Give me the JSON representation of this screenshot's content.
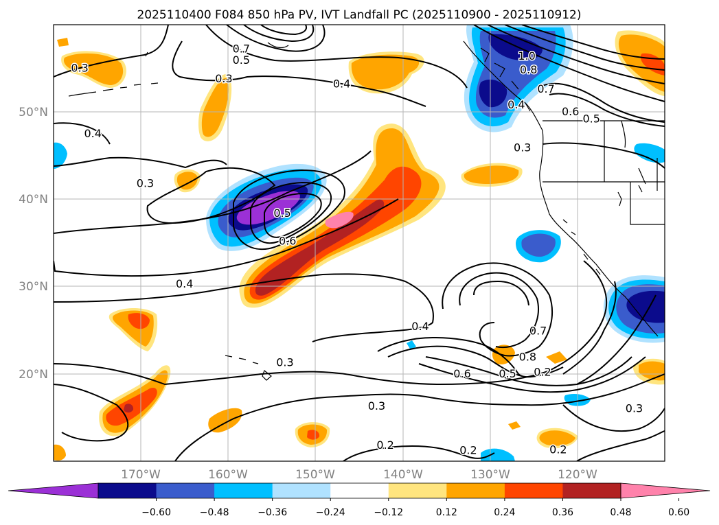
{
  "title": "2025110400 F084 850 hPa PV, IVT Landfall PC (2025110900 - 2025110912)",
  "map": {
    "lon_range": [
      -180,
      -110
    ],
    "lat_range": [
      10,
      60
    ],
    "lon_ticks": [
      -170,
      -160,
      -150,
      -140,
      -130,
      -120
    ],
    "lon_tick_labels": [
      "170°W",
      "160°W",
      "150°W",
      "140°W",
      "130°W",
      "120°W"
    ],
    "lat_ticks": [
      20,
      30,
      40,
      50
    ],
    "lat_tick_labels": [
      "20°N",
      "30°N",
      "40°N",
      "50°N"
    ],
    "gridlines": true,
    "contour_labels": [
      {
        "text": "0.7",
        "lon": -158.5,
        "lat": 57.2
      },
      {
        "text": "0.5",
        "lon": -158.5,
        "lat": 55.9
      },
      {
        "text": "0.3",
        "lon": -160.5,
        "lat": 53.8
      },
      {
        "text": "0.4",
        "lon": -147.0,
        "lat": 53.2
      },
      {
        "text": "0.3",
        "lon": -177.0,
        "lat": 55.0
      },
      {
        "text": "1.0",
        "lon": -125.8,
        "lat": 56.4
      },
      {
        "text": "0.8",
        "lon": -125.6,
        "lat": 54.8
      },
      {
        "text": "0.7",
        "lon": -123.6,
        "lat": 52.6
      },
      {
        "text": "0.4",
        "lon": -127.0,
        "lat": 50.8
      },
      {
        "text": "0.6",
        "lon": -120.8,
        "lat": 50.0
      },
      {
        "text": "0.5",
        "lon": -118.4,
        "lat": 49.2
      },
      {
        "text": "0.3",
        "lon": -126.3,
        "lat": 45.9
      },
      {
        "text": "0.4",
        "lon": -175.5,
        "lat": 47.5
      },
      {
        "text": "0.3",
        "lon": -169.5,
        "lat": 41.8
      },
      {
        "text": "0.5",
        "lon": -153.8,
        "lat": 38.4
      },
      {
        "text": "0.6",
        "lon": -153.2,
        "lat": 35.2
      },
      {
        "text": "0.4",
        "lon": -165.0,
        "lat": 30.3
      },
      {
        "text": "0.4",
        "lon": -138.0,
        "lat": 25.4
      },
      {
        "text": "0.7",
        "lon": -124.5,
        "lat": 24.9
      },
      {
        "text": "0.8",
        "lon": -125.7,
        "lat": 21.9
      },
      {
        "text": "0.6",
        "lon": -133.2,
        "lat": 20.0
      },
      {
        "text": "0.5",
        "lon": -128.0,
        "lat": 20.0
      },
      {
        "text": "0.2",
        "lon": -124.0,
        "lat": 20.2
      },
      {
        "text": "0.3",
        "lon": -153.5,
        "lat": 21.3
      },
      {
        "text": "0.3",
        "lon": -143.0,
        "lat": 16.3
      },
      {
        "text": "0.3",
        "lon": -113.5,
        "lat": 16.0
      },
      {
        "text": "0.2",
        "lon": -142.0,
        "lat": 11.8
      },
      {
        "text": "0.2",
        "lon": -132.5,
        "lat": 11.2
      },
      {
        "text": "0.2",
        "lon": -122.2,
        "lat": 11.3
      }
    ]
  },
  "colorbar": {
    "colors": [
      "#9b30d6",
      "#0b0b8c",
      "#3a5ccc",
      "#00bfff",
      "#b0e2ff",
      "#ffffff",
      "#ffe57f",
      "#ffa500",
      "#ff4500",
      "#b22222",
      "#ff82ab"
    ],
    "tick_labels": [
      "−0.60",
      "−0.48",
      "−0.36",
      "−0.24",
      "−0.12",
      "0.12",
      "0.24",
      "0.36",
      "0.48",
      "0.60"
    ]
  }
}
